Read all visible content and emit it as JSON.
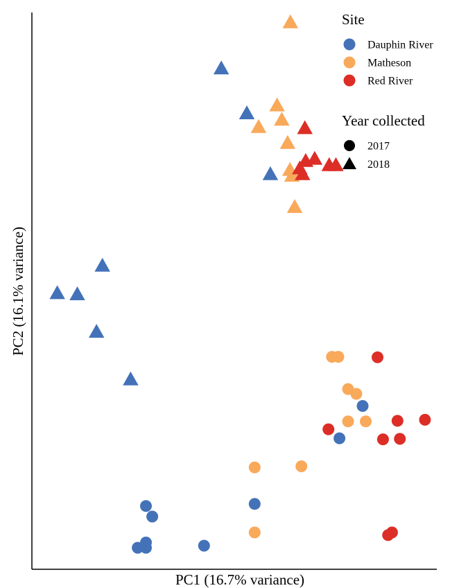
{
  "chart_data": {
    "type": "scatter",
    "xlabel": "PC1 (16.7% variance)",
    "ylabel": "PC2 (16.1% variance)",
    "xlim": [
      0,
      100
    ],
    "ylim": [
      0,
      100
    ],
    "grid": false,
    "legend_position": "top-right",
    "legend": {
      "site_title": "Site",
      "sites": [
        {
          "name": "Dauphin River",
          "color": "#4472b8"
        },
        {
          "name": "Matheson",
          "color": "#f9a95a"
        },
        {
          "name": "Red River",
          "color": "#dc2e27"
        }
      ],
      "year_title": "Year collected",
      "years": [
        {
          "name": "2017",
          "shape": "circle"
        },
        {
          "name": "2018",
          "shape": "triangle"
        }
      ]
    },
    "series": [
      {
        "site": "Dauphin River",
        "year": "2017",
        "color": "#4472b8",
        "shape": "circle",
        "x": [
          27.3,
          28.9,
          27.3,
          25.2,
          27.3,
          42.1,
          55.0,
          76.6,
          82.5
        ],
        "y": [
          9.6,
          7.6,
          2.7,
          1.7,
          1.7,
          2.1,
          10.0,
          22.4,
          28.5
        ]
      },
      {
        "site": "Matheson",
        "year": "2017",
        "color": "#f9a95a",
        "shape": "circle",
        "x": [
          55.0,
          55.0,
          66.9,
          74.7,
          76.3,
          78.8,
          80.9,
          83.3,
          78.8
        ],
        "y": [
          16.9,
          4.6,
          17.1,
          37.8,
          37.8,
          31.7,
          30.8,
          25.6,
          25.6
        ]
      },
      {
        "site": "Red River",
        "year": "2017",
        "color": "#dc2e27",
        "shape": "circle",
        "x": [
          86.3,
          73.8,
          91.4,
          98.4,
          87.7,
          92.0,
          89.0,
          90.0
        ],
        "y": [
          37.7,
          24.1,
          25.7,
          25.9,
          22.2,
          22.3,
          4.1,
          4.6
        ]
      },
      {
        "site": "Dauphin River",
        "year": "2018",
        "color": "#4472b8",
        "shape": "triangle",
        "x": [
          46.5,
          53.0,
          59.0,
          16.2,
          4.7,
          9.8,
          14.7,
          23.4
        ],
        "y": [
          92.3,
          83.8,
          72.3,
          55.0,
          49.8,
          49.6,
          42.5,
          33.5
        ]
      },
      {
        "site": "Matheson",
        "year": "2018",
        "color": "#f9a95a",
        "shape": "triangle",
        "x": [
          64.1,
          60.7,
          61.9,
          56.0,
          63.4,
          64.5,
          64.0,
          65.2
        ],
        "y": [
          101.0,
          85.3,
          82.6,
          81.2,
          78.2,
          72.0,
          73.1,
          66.1
        ]
      },
      {
        "site": "Red River",
        "year": "2018",
        "color": "#dc2e27",
        "shape": "triangle",
        "x": [
          67.8,
          66.5,
          68.0,
          70.3,
          74.0,
          75.7,
          67.2
        ],
        "y": [
          81.0,
          73.4,
          74.8,
          75.2,
          74.0,
          74.0,
          72.3
        ]
      }
    ]
  }
}
